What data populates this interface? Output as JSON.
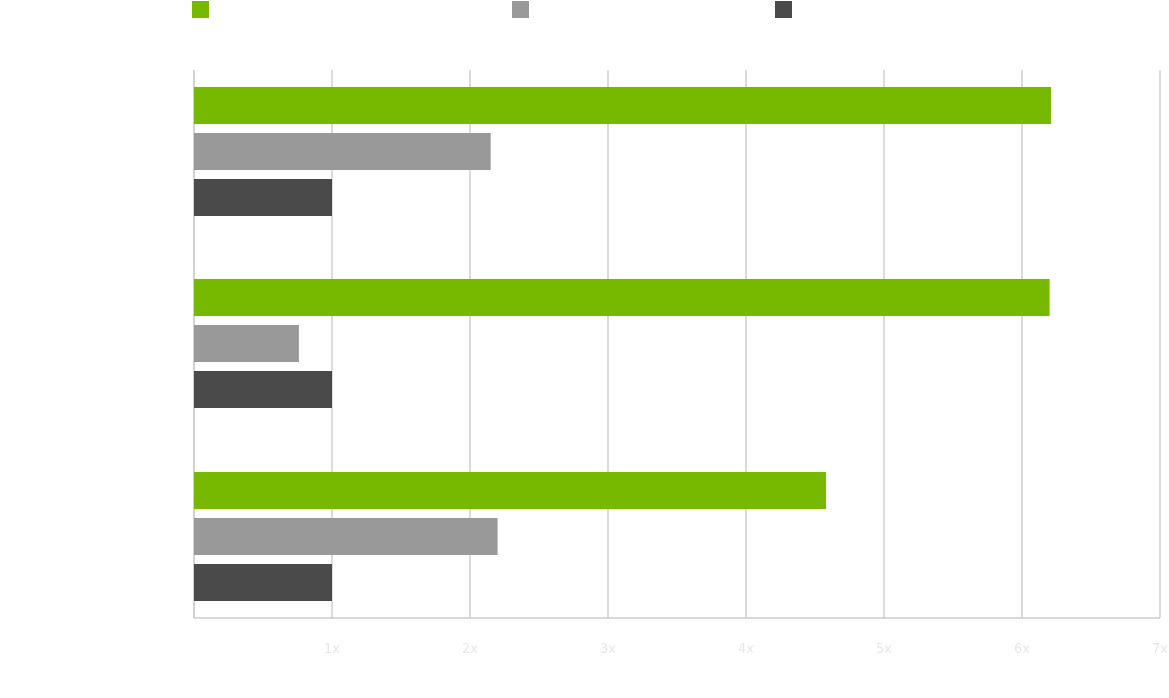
{
  "chart_data": {
    "type": "bar",
    "orientation": "horizontal",
    "categories": [
      "",
      "",
      ""
    ],
    "series": [
      {
        "name": "",
        "color": "#76b900",
        "values": [
          6.21,
          6.2,
          4.58
        ]
      },
      {
        "name": "",
        "color": "#999999",
        "values": [
          2.15,
          0.76,
          2.2
        ]
      },
      {
        "name": "",
        "color": "#4a4a4a",
        "values": [
          1.0,
          1.0,
          1.0
        ]
      }
    ],
    "xlim": [
      0,
      7
    ],
    "ticks": [
      {
        "value": 1,
        "label": "1x"
      },
      {
        "value": 2,
        "label": "2x"
      },
      {
        "value": 3,
        "label": "3x"
      },
      {
        "value": 4,
        "label": "4x"
      },
      {
        "value": 5,
        "label": "5x"
      },
      {
        "value": 6,
        "label": "6x"
      },
      {
        "value": 7,
        "label": "7x"
      }
    ],
    "grid": true,
    "legend_position": "top",
    "tick_label_color": "#e6e6e6",
    "grid_color": "#b5b5b5"
  }
}
